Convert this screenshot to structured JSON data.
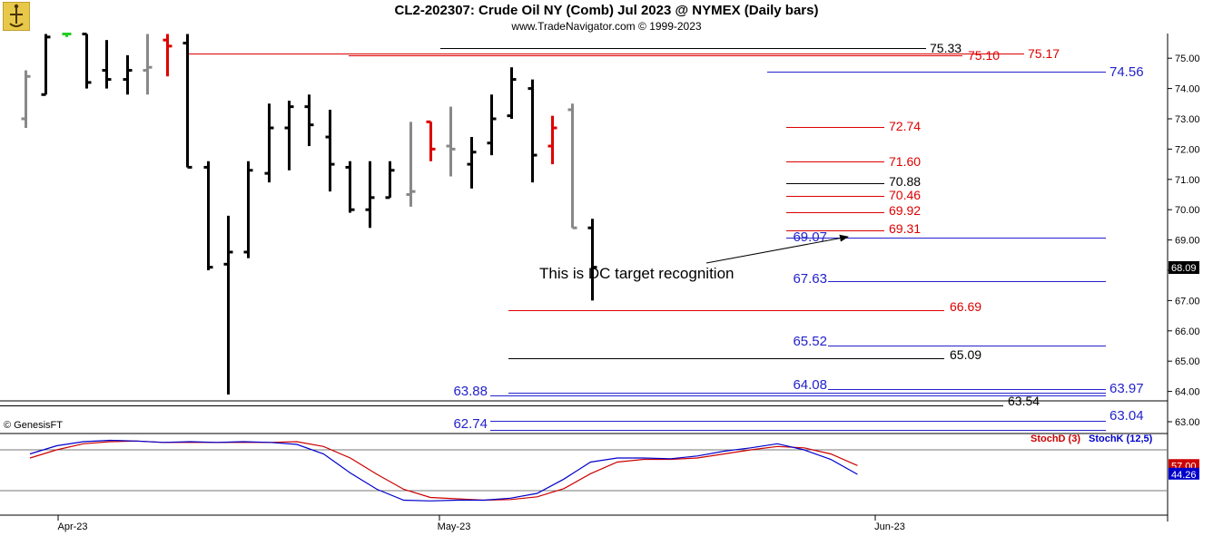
{
  "header": {
    "title": "CL2-202307:  Crude Oil NY (Comb) Jul 2023 @ NYMEX  (Daily bars)",
    "subtitle": "www.TradeNavigator.com © 1999-2023",
    "watermark": "© GenesisFT"
  },
  "colors": {
    "up": "#000000",
    "flat": "#888888",
    "down": "#dd0000",
    "green": "#22cc22",
    "red_level": "#dd0000",
    "blue_level": "#2222cc",
    "black_level": "#000000",
    "stochD": "#cc0000",
    "stochK": "#0000cc"
  },
  "chart_data": [
    {
      "type": "ohlc",
      "title": "CL2-202307:  Crude Oil NY (Comb) Jul 2023 @ NYMEX  (Daily bars)",
      "ylim": [
        62.5,
        75.8
      ],
      "y_ticks": [
        63,
        64,
        65,
        66,
        67,
        68,
        69,
        70,
        71,
        72,
        73,
        74,
        75
      ],
      "x_tick_labels": [
        "Apr-23",
        "May-23",
        "Jun-23"
      ],
      "last_price": "68.09",
      "bars": [
        {
          "o": 73.0,
          "h": 74.6,
          "l": 72.7,
          "c": 74.4,
          "t": "flat"
        },
        {
          "o": 73.8,
          "h": 75.8,
          "l": 73.8,
          "c": 75.7,
          "t": "up"
        },
        {
          "o": 75.8,
          "h": 75.8,
          "l": 75.7,
          "c": 75.8,
          "t": "green"
        },
        {
          "o": 75.8,
          "h": 75.8,
          "l": 74.0,
          "c": 74.2,
          "t": "up"
        },
        {
          "o": 74.6,
          "h": 75.6,
          "l": 74.0,
          "c": 74.3,
          "t": "up"
        },
        {
          "o": 74.3,
          "h": 75.1,
          "l": 73.8,
          "c": 74.6,
          "t": "up"
        },
        {
          "o": 74.6,
          "h": 75.8,
          "l": 73.8,
          "c": 74.7,
          "t": "flat"
        },
        {
          "o": 75.6,
          "h": 75.8,
          "l": 74.4,
          "c": 75.4,
          "t": "down"
        },
        {
          "o": 75.5,
          "h": 75.8,
          "l": 71.4,
          "c": 71.4,
          "t": "up"
        },
        {
          "o": 71.4,
          "h": 71.6,
          "l": 68.0,
          "c": 68.1,
          "t": "up"
        },
        {
          "o": 68.2,
          "h": 69.8,
          "l": 63.9,
          "c": 68.6,
          "t": "up"
        },
        {
          "o": 68.6,
          "h": 71.6,
          "l": 68.4,
          "c": 71.3,
          "t": "up"
        },
        {
          "o": 71.2,
          "h": 73.5,
          "l": 70.9,
          "c": 72.7,
          "t": "up"
        },
        {
          "o": 72.7,
          "h": 73.6,
          "l": 71.3,
          "c": 73.4,
          "t": "up"
        },
        {
          "o": 73.4,
          "h": 73.8,
          "l": 72.1,
          "c": 72.8,
          "t": "up"
        },
        {
          "o": 72.4,
          "h": 73.3,
          "l": 70.6,
          "c": 71.5,
          "t": "up"
        },
        {
          "o": 71.4,
          "h": 71.6,
          "l": 69.9,
          "c": 70.0,
          "t": "up"
        },
        {
          "o": 70.0,
          "h": 71.6,
          "l": 69.4,
          "c": 70.4,
          "t": "up"
        },
        {
          "o": 70.4,
          "h": 71.6,
          "l": 70.4,
          "c": 71.3,
          "t": "up"
        },
        {
          "o": 70.5,
          "h": 72.9,
          "l": 70.1,
          "c": 70.6,
          "t": "flat"
        },
        {
          "o": 72.9,
          "h": 72.9,
          "l": 71.6,
          "c": 72.0,
          "t": "down"
        },
        {
          "o": 72.1,
          "h": 73.4,
          "l": 71.1,
          "c": 72.0,
          "t": "flat"
        },
        {
          "o": 71.5,
          "h": 72.4,
          "l": 70.7,
          "c": 71.9,
          "t": "up"
        },
        {
          "o": 72.2,
          "h": 73.8,
          "l": 71.8,
          "c": 73.0,
          "t": "up"
        },
        {
          "o": 73.1,
          "h": 74.7,
          "l": 73.0,
          "c": 74.3,
          "t": "up"
        },
        {
          "o": 74.0,
          "h": 74.3,
          "l": 70.9,
          "c": 71.8,
          "t": "up"
        },
        {
          "o": 72.1,
          "h": 73.1,
          "l": 71.5,
          "c": 72.7,
          "t": "down"
        },
        {
          "o": 73.3,
          "h": 73.5,
          "l": 69.4,
          "c": 69.4,
          "t": "flat"
        },
        {
          "o": 69.4,
          "h": 69.7,
          "l": 67.0,
          "c": 68.1,
          "t": "up"
        }
      ],
      "levels": [
        {
          "value": 75.33,
          "label": "75.33",
          "color": "black"
        },
        {
          "value": 75.1,
          "label": "75.10",
          "color": "red"
        },
        {
          "value": 75.17,
          "label": "75.17",
          "color": "red"
        },
        {
          "value": 74.56,
          "label": "74.56",
          "color": "blue"
        },
        {
          "value": 72.74,
          "label": "72.74",
          "color": "red"
        },
        {
          "value": 71.6,
          "label": "71.60",
          "color": "red"
        },
        {
          "value": 70.88,
          "label": "70.88",
          "color": "black"
        },
        {
          "value": 70.46,
          "label": "70.46",
          "color": "red"
        },
        {
          "value": 69.92,
          "label": "69.92",
          "color": "red"
        },
        {
          "value": 69.31,
          "label": "69.31",
          "color": "red"
        },
        {
          "value": 69.07,
          "label": "69.07",
          "color": "blue"
        },
        {
          "value": 67.63,
          "label": "67.63",
          "color": "blue"
        },
        {
          "value": 66.69,
          "label": "66.69",
          "color": "red"
        },
        {
          "value": 65.52,
          "label": "65.52",
          "color": "blue"
        },
        {
          "value": 65.09,
          "label": "65.09",
          "color": "black"
        },
        {
          "value": 64.08,
          "label": "64.08",
          "color": "blue"
        },
        {
          "value": 63.97,
          "label": "63.97",
          "color": "blue"
        },
        {
          "value": 63.88,
          "label": "63.88",
          "color": "blue"
        },
        {
          "value": 63.54,
          "label": "63.54",
          "color": "black"
        },
        {
          "value": 63.04,
          "label": "63.04",
          "color": "blue"
        },
        {
          "value": 62.74,
          "label": "62.74",
          "color": "blue"
        }
      ],
      "annotation": "This is DC target recognition"
    },
    {
      "type": "line",
      "legend": [
        "StochD (3)",
        "StochK (12,5)"
      ],
      "last_values": {
        "StochD (3)": "57.00",
        "StochK (12,5)": "44.26"
      },
      "ylim": [
        0,
        100
      ],
      "series": [
        {
          "name": "StochD (3)",
          "values": [
            68,
            80,
            89,
            92,
            93,
            91,
            91,
            91,
            91,
            91,
            92,
            85,
            68,
            44,
            22,
            10,
            8,
            6,
            7,
            11,
            23,
            45,
            62,
            66,
            66,
            68,
            74,
            80,
            85,
            83,
            74,
            57
          ]
        },
        {
          "name": "StochK (12,5)",
          "values": [
            74,
            86,
            92,
            94,
            93,
            91,
            92,
            91,
            92,
            91,
            88,
            74,
            46,
            22,
            6,
            5,
            6,
            6,
            9,
            16,
            37,
            62,
            68,
            68,
            67,
            71,
            78,
            83,
            89,
            80,
            66,
            44
          ]
        }
      ]
    }
  ]
}
